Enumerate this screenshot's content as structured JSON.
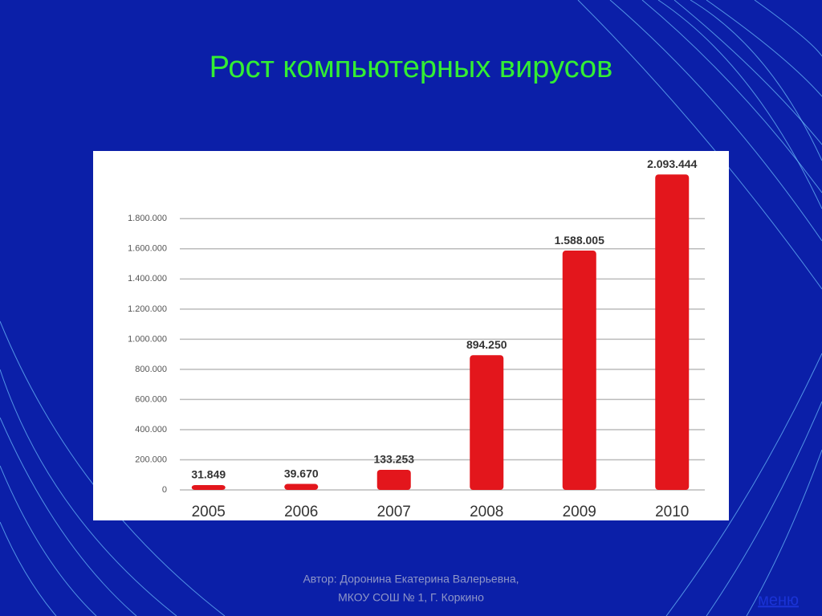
{
  "chart_data": {
    "type": "bar",
    "title": "Рост компьютерных вирусов",
    "categories": [
      "2005",
      "2006",
      "2007",
      "2008",
      "2009",
      "2010"
    ],
    "values": [
      31849,
      39670,
      133253,
      894250,
      1588005,
      2093444
    ],
    "value_labels": [
      "31.849",
      "39.670",
      "133.253",
      "894.250",
      "1.588.005",
      "2.093.444"
    ],
    "color": "#e3161c",
    "ylim": [
      0,
      2100000
    ],
    "yticks": [
      0,
      {
        "value": 200000,
        "label": "200.000"
      },
      {
        "value": 400000,
        "label": "400.000"
      },
      {
        "value": 600000,
        "label": "600.000"
      },
      {
        "value": 800000,
        "label": "800.000"
      },
      {
        "value": 1000000,
        "label": "1.000.000"
      },
      {
        "value": 1200000,
        "label": "1.200.000"
      },
      {
        "value": 1400000,
        "label": "1.400.000"
      },
      {
        "value": 1600000,
        "label": "1.600.000"
      },
      {
        "value": 1800000,
        "label": "1.800.000"
      }
    ],
    "grid": true
  },
  "footer": {
    "author": "Автор: Доронина Екатерина Валерьевна,",
    "school": "МКОУ СОШ № 1, Г. Коркино",
    "link": "меню"
  }
}
